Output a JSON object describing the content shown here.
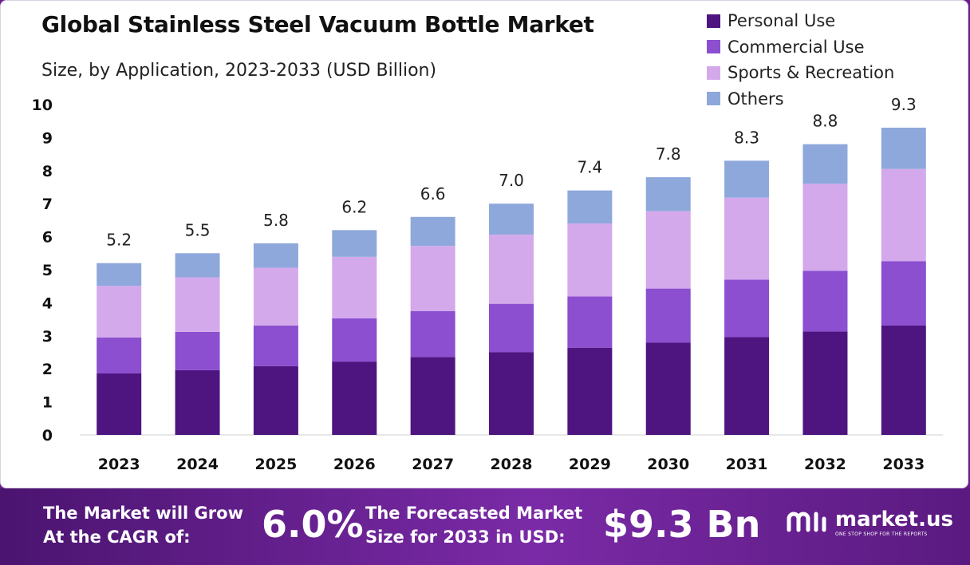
{
  "chart_data": {
    "type": "bar",
    "stacked": true,
    "title": "Global Stainless Steel Vacuum Bottle Market",
    "subtitle": "Size, by Application, 2023-2033 (USD Billion)",
    "categories": [
      "2023",
      "2024",
      "2025",
      "2026",
      "2027",
      "2028",
      "2029",
      "2030",
      "2031",
      "2032",
      "2033"
    ],
    "series": [
      {
        "name": "Personal Use",
        "color": "#4e1580",
        "values": [
          1.86,
          1.96,
          2.08,
          2.22,
          2.36,
          2.5,
          2.64,
          2.79,
          2.96,
          3.13,
          3.31
        ]
      },
      {
        "name": "Commercial Use",
        "color": "#8b4fd0",
        "values": [
          1.09,
          1.16,
          1.23,
          1.31,
          1.39,
          1.47,
          1.55,
          1.64,
          1.74,
          1.84,
          1.95
        ]
      },
      {
        "name": "Sports & Recreation",
        "color": "#d4a9ec",
        "values": [
          1.56,
          1.65,
          1.75,
          1.86,
          1.97,
          2.09,
          2.21,
          2.34,
          2.48,
          2.63,
          2.79
        ]
      },
      {
        "name": "Others",
        "color": "#8fa8dc",
        "values": [
          0.69,
          0.73,
          0.74,
          0.81,
          0.88,
          0.94,
          1.0,
          1.03,
          1.12,
          1.2,
          1.25
        ]
      }
    ],
    "totals": [
      "5.2",
      "5.5",
      "5.8",
      "6.2",
      "6.6",
      "7.0",
      "7.4",
      "7.8",
      "8.3",
      "8.8",
      "9.3"
    ],
    "ylim": [
      0,
      10
    ],
    "yticks": [
      "0",
      "1",
      "2",
      "3",
      "4",
      "5",
      "6",
      "7",
      "8",
      "9",
      "10"
    ],
    "xlabel": "",
    "ylabel": "",
    "grid": false,
    "legend_position": "top-right"
  },
  "banner": {
    "cagr_line1": "The Market will Grow",
    "cagr_line2": "At the CAGR of:",
    "cagr_value": "6.0%",
    "forecast_line1": "The Forecasted Market",
    "forecast_line2": "Size for 2033 in USD:",
    "forecast_value": "$9.3 Bn",
    "logo_name": "market.us",
    "logo_tagline": "ONE STOP SHOP FOR THE REPORTS"
  }
}
